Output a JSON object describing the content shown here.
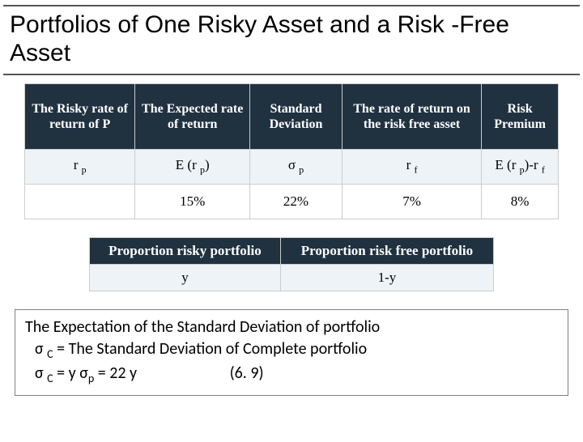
{
  "title": "Portfolios of One Risky Asset and a Risk -Free Asset",
  "table1": {
    "headers": [
      "The Risky rate of return of P",
      "The Expected rate of return",
      "Standard Deviation",
      "The rate of return on the risk free asset",
      "Risk Premium"
    ],
    "row1": {
      "c1_pre": "r ",
      "c1_sub": "p",
      "c2_pre": "E (r ",
      "c2_sub": "p",
      "c2_post": ")",
      "c3_pre": "σ ",
      "c3_sub": "p",
      "c4_pre": "r ",
      "c4_sub": "f",
      "c5_pre": "E (r ",
      "c5_sub1": "p",
      "c5_mid": ")-r ",
      "c5_sub2": "f"
    },
    "row2": [
      "",
      "15%",
      "22%",
      "7%",
      "8%"
    ]
  },
  "table2": {
    "headers": [
      "Proportion risky portfolio",
      "Proportion risk free portfolio"
    ],
    "row": [
      "y",
      "1-y"
    ]
  },
  "note": {
    "line1": "The Expectation of  the Standard Deviation of portfolio",
    "line2_pre": "σ ",
    "line2_sub": "C",
    "line2_post": " = The Standard Deviation of Complete portfolio",
    "line3_pre": "σ ",
    "line3_sub1": "C",
    "line3_mid": "   = y σ",
    "line3_sub2": "p",
    "line3_post": "  = 22 y",
    "line3_extra": "(6. 9)"
  },
  "colors": {
    "header_bg": "#203140",
    "row_alt_bg": "#eef3f7",
    "border": "#cccccc",
    "title_rule": "#555555"
  }
}
